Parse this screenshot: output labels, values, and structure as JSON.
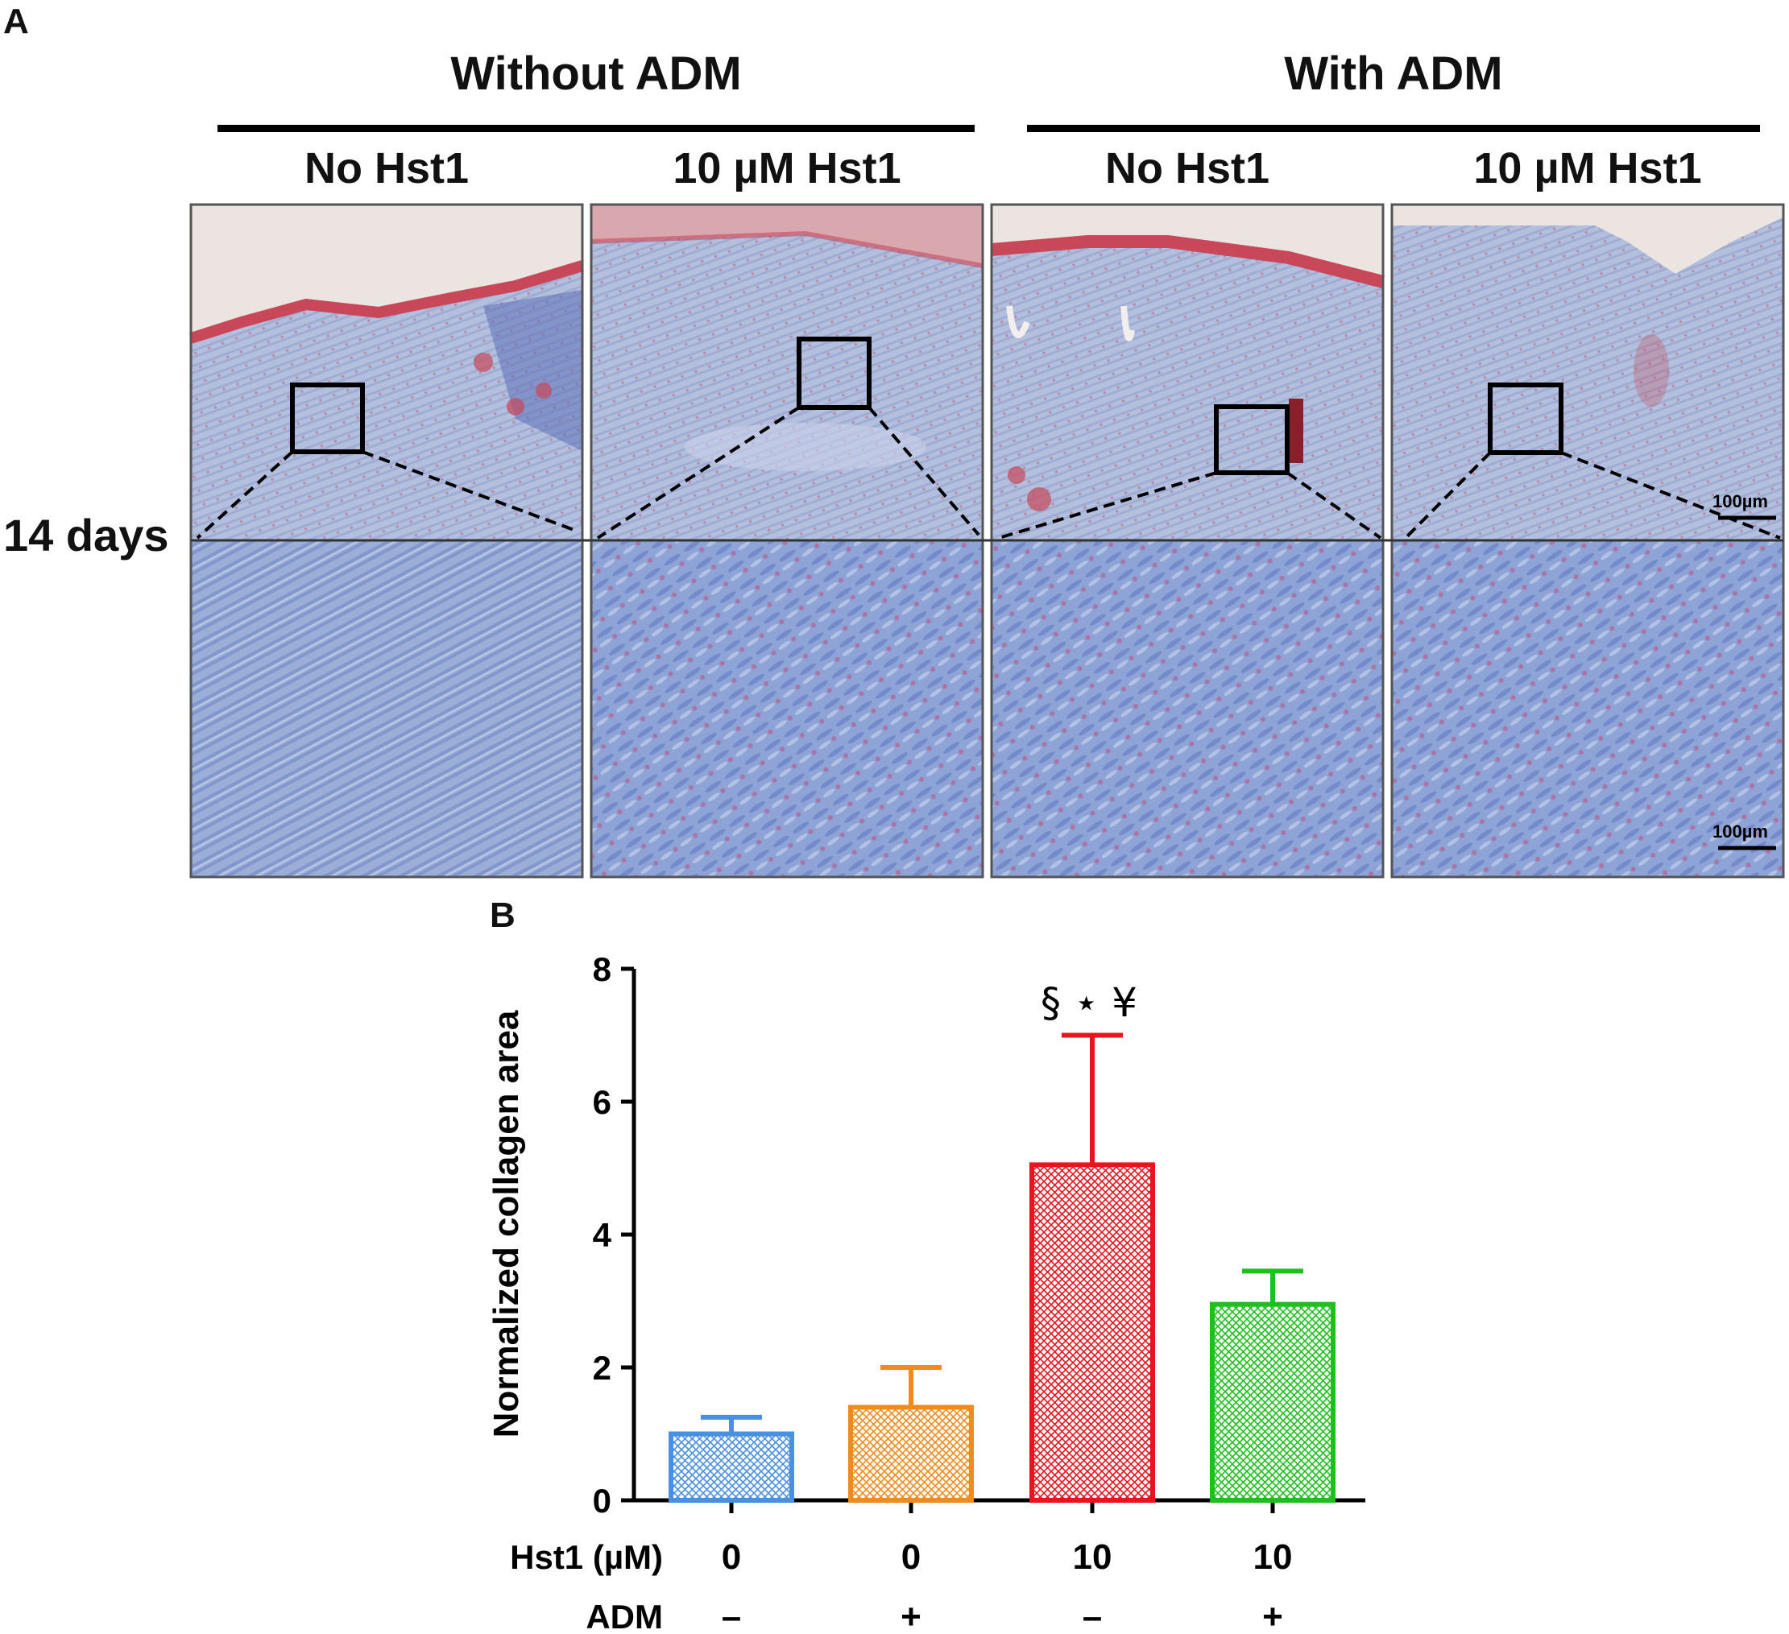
{
  "panel_a": {
    "label": "A",
    "groups": [
      {
        "label": "Without ADM"
      },
      {
        "label": "With ADM"
      }
    ],
    "columns": [
      {
        "label": "No Hst1"
      },
      {
        "label": "10 µM Hst1"
      },
      {
        "label": "No Hst1"
      },
      {
        "label": "10 µM Hst1"
      }
    ],
    "row_label": "14 days",
    "scale_bar_label": "100µm",
    "stain_colors": {
      "collagen": "#7e97cc",
      "epidermis": "#c8485a",
      "nuclei": "#c0506e",
      "background": "#ece6e2"
    }
  },
  "panel_b": {
    "label": "B",
    "condition_rows": [
      {
        "label": "Hst1 (µM)",
        "values": [
          "0",
          "0",
          "10",
          "10"
        ]
      },
      {
        "label": "ADM",
        "values": [
          "–",
          "+",
          "–",
          "+"
        ]
      }
    ]
  },
  "chart_data": {
    "type": "bar",
    "title": "",
    "xlabel": "",
    "ylabel": "Normalized collagen area",
    "ylim": [
      0,
      8
    ],
    "yticks": [
      "0",
      "2",
      "4",
      "6",
      "8"
    ],
    "categories": [
      "0 / –",
      "0 / +",
      "10 / –",
      "10 / +"
    ],
    "values": [
      1.0,
      1.4,
      5.05,
      2.95
    ],
    "errors": [
      0.25,
      0.6,
      1.95,
      0.5
    ],
    "colors": [
      "#4a90e2",
      "#f08c1e",
      "#e8141e",
      "#1ec01e"
    ],
    "annotation": "§ ⋆ ¥",
    "annotation_bar_index": 2,
    "grid": false,
    "legend": "none",
    "fill": "cross-hatch"
  }
}
